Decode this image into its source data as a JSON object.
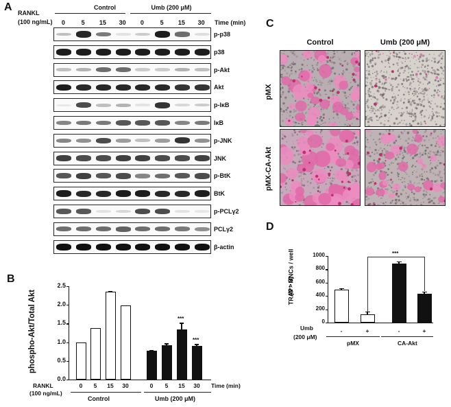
{
  "panels": {
    "A": {
      "letter": "A",
      "rankl_label": "RANKL",
      "rankl_conc": "(100 ng/mL)",
      "groups": [
        "Control",
        "Umb (200 μM)"
      ],
      "time_points": [
        "0",
        "5",
        "15",
        "30",
        "0",
        "5",
        "15",
        "30"
      ],
      "time_label": "Time (min)",
      "blots": [
        {
          "label": "p-p38",
          "intensities": [
            0.25,
            0.9,
            0.55,
            0.1,
            0.2,
            0.95,
            0.6,
            0.12
          ]
        },
        {
          "label": "p38",
          "intensities": [
            0.95,
            0.95,
            0.95,
            0.95,
            0.95,
            0.95,
            0.95,
            0.95
          ]
        },
        {
          "label": "p-Akt",
          "intensities": [
            0.25,
            0.3,
            0.6,
            0.6,
            0.2,
            0.2,
            0.3,
            0.25
          ]
        },
        {
          "label": "Akt",
          "intensities": [
            0.95,
            0.9,
            0.9,
            0.9,
            0.9,
            0.9,
            0.85,
            0.85
          ]
        },
        {
          "label": "p-IκB",
          "intensities": [
            0.05,
            0.75,
            0.25,
            0.3,
            0.1,
            0.85,
            0.15,
            0.2
          ]
        },
        {
          "label": "IκB",
          "intensities": [
            0.5,
            0.55,
            0.55,
            0.7,
            0.7,
            0.7,
            0.5,
            0.55
          ]
        },
        {
          "label": "p-JNK",
          "intensities": [
            0.5,
            0.45,
            0.75,
            0.4,
            0.25,
            0.4,
            0.85,
            0.45
          ]
        },
        {
          "label": "JNK",
          "intensities": [
            0.8,
            0.75,
            0.75,
            0.8,
            0.8,
            0.75,
            0.75,
            0.8
          ]
        },
        {
          "label": "p-BtK",
          "intensities": [
            0.7,
            0.8,
            0.7,
            0.75,
            0.5,
            0.6,
            0.7,
            0.75
          ]
        },
        {
          "label": "BtK",
          "intensities": [
            0.95,
            0.9,
            0.9,
            0.95,
            0.95,
            0.9,
            0.9,
            0.95
          ]
        },
        {
          "label": "p-PCLγ2",
          "intensities": [
            0.7,
            0.7,
            0.1,
            0.15,
            0.75,
            0.75,
            0.1,
            0.08
          ]
        },
        {
          "label": "PCLγ2",
          "intensities": [
            0.6,
            0.6,
            0.6,
            0.65,
            0.6,
            0.6,
            0.55,
            0.45
          ]
        },
        {
          "label": "β-actin",
          "intensities": [
            1,
            1,
            1,
            1,
            1,
            1,
            1,
            1
          ]
        }
      ]
    },
    "B": {
      "letter": "B",
      "rankl_label": "RANKL",
      "rankl_conc": "(100 ng/mL)",
      "time_label": "Time (min)",
      "groups": [
        "Control",
        "Umb (200 μM)"
      ]
    },
    "C": {
      "letter": "C",
      "col_labels": [
        "Control",
        "Umb (200 μM)"
      ],
      "row_labels": [
        "pMX",
        "pMX-CA-Akt"
      ]
    },
    "D": {
      "letter": "D",
      "umb_label": "Umb",
      "umb_conc": "(200 μM)",
      "signs": [
        "-",
        "+",
        "-",
        "+"
      ],
      "groups": [
        "pMX",
        "CA-Akt"
      ],
      "significance": "***"
    }
  },
  "chart_data": [
    {
      "type": "bar",
      "panel": "B",
      "title": "",
      "ylabel": "phospho-Akt/Total Akt",
      "xlabel": "Time (min)",
      "categories": [
        "0",
        "5",
        "15",
        "30",
        "0",
        "5",
        "15",
        "30"
      ],
      "ylim": [
        0,
        2.5
      ],
      "yticks": [
        "0.0",
        "0.5",
        "1.0",
        "1.5",
        "2.0",
        "2.5"
      ],
      "series": [
        {
          "name": "Control",
          "fill": "#ffffff",
          "values": [
            1.0,
            1.37,
            2.35,
            1.98,
            null,
            null,
            null,
            null
          ],
          "errors": [
            0,
            0.01,
            0.02,
            0.01,
            null,
            null,
            null,
            null
          ],
          "sig": [
            "",
            "",
            "",
            ""
          ]
        },
        {
          "name": "Umb (200 μM)",
          "fill": "#111111",
          "values": [
            null,
            null,
            null,
            null,
            0.78,
            0.91,
            1.34,
            0.9
          ],
          "errors": [
            null,
            null,
            null,
            null,
            0.01,
            0.06,
            0.18,
            0.05
          ],
          "sig": [
            "",
            "",
            "***",
            "***"
          ]
        }
      ],
      "grid": false,
      "legend": "none"
    },
    {
      "type": "bar",
      "panel": "D",
      "title": "",
      "ylabel": "TRAP+ MNCs / well (N > 3)",
      "categories": [
        "pMX -",
        "pMX +",
        "CA-Akt -",
        "CA-Akt +"
      ],
      "ylim": [
        0,
        1000
      ],
      "yticks": [
        "0",
        "200",
        "400",
        "600",
        "800",
        "1000"
      ],
      "values": [
        490,
        125,
        890,
        430
      ],
      "errors": [
        25,
        40,
        30,
        35
      ],
      "fills": [
        "#ffffff",
        "#ffffff",
        "#111111",
        "#111111"
      ],
      "annotations": [
        {
          "text": "***",
          "between": [
            "pMX +",
            "CA-Akt +"
          ]
        }
      ],
      "grid": false
    }
  ]
}
